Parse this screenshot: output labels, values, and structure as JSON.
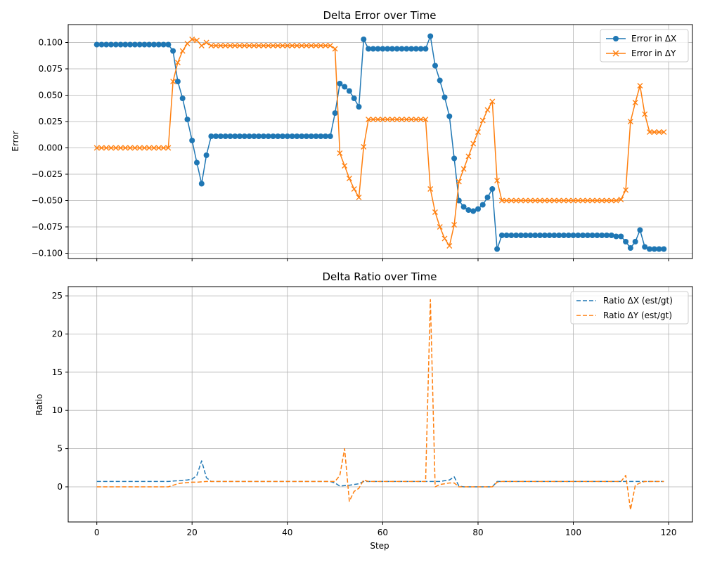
{
  "chart_data": [
    {
      "type": "line",
      "title": "Delta Error over Time",
      "xlabel": "",
      "ylabel": "Error",
      "xlim": [
        -6,
        125
      ],
      "ylim": [
        -0.105,
        0.117
      ],
      "xticks": [
        0,
        20,
        40,
        60,
        80,
        100,
        120
      ],
      "yticks": [
        -0.1,
        -0.075,
        -0.05,
        -0.025,
        0.0,
        0.025,
        0.05,
        0.075,
        0.1
      ],
      "ytick_labels": [
        "−0.100",
        "−0.075",
        "−0.050",
        "−0.025",
        "0.000",
        "0.025",
        "0.050",
        "0.075",
        "0.100"
      ],
      "show_xtick_labels": false,
      "grid": true,
      "legend_position": "top-right",
      "x": [
        0,
        1,
        2,
        3,
        4,
        5,
        6,
        7,
        8,
        9,
        10,
        11,
        12,
        13,
        14,
        15,
        16,
        17,
        18,
        19,
        20,
        21,
        22,
        23,
        24,
        25,
        26,
        27,
        28,
        29,
        30,
        31,
        32,
        33,
        34,
        35,
        36,
        37,
        38,
        39,
        40,
        41,
        42,
        43,
        44,
        45,
        46,
        47,
        48,
        49,
        50,
        51,
        52,
        53,
        54,
        55,
        56,
        57,
        58,
        59,
        60,
        61,
        62,
        63,
        64,
        65,
        66,
        67,
        68,
        69,
        70,
        71,
        72,
        73,
        74,
        75,
        76,
        77,
        78,
        79,
        80,
        81,
        82,
        83,
        84,
        85,
        86,
        87,
        88,
        89,
        90,
        91,
        92,
        93,
        94,
        95,
        96,
        97,
        98,
        99,
        100,
        101,
        102,
        103,
        104,
        105,
        106,
        107,
        108,
        109,
        110,
        111,
        112,
        113,
        114,
        115,
        116,
        117,
        118,
        119
      ],
      "series": [
        {
          "name": "Error in ΔX",
          "color": "#1f77b4",
          "marker": "circle",
          "linestyle": "solid",
          "values": [
            0.098,
            0.098,
            0.098,
            0.098,
            0.098,
            0.098,
            0.098,
            0.098,
            0.098,
            0.098,
            0.098,
            0.098,
            0.098,
            0.098,
            0.098,
            0.098,
            0.092,
            0.063,
            0.047,
            0.027,
            0.007,
            -0.014,
            -0.034,
            -0.007,
            0.011,
            0.011,
            0.011,
            0.011,
            0.011,
            0.011,
            0.011,
            0.011,
            0.011,
            0.011,
            0.011,
            0.011,
            0.011,
            0.011,
            0.011,
            0.011,
            0.011,
            0.011,
            0.011,
            0.011,
            0.011,
            0.011,
            0.011,
            0.011,
            0.011,
            0.011,
            0.033,
            0.061,
            0.058,
            0.054,
            0.047,
            0.039,
            0.103,
            0.094,
            0.094,
            0.094,
            0.094,
            0.094,
            0.094,
            0.094,
            0.094,
            0.094,
            0.094,
            0.094,
            0.094,
            0.094,
            0.106,
            0.078,
            0.064,
            0.048,
            0.03,
            -0.01,
            -0.05,
            -0.056,
            -0.059,
            -0.06,
            -0.058,
            -0.054,
            -0.047,
            -0.039,
            -0.096,
            -0.083,
            -0.083,
            -0.083,
            -0.083,
            -0.083,
            -0.083,
            -0.083,
            -0.083,
            -0.083,
            -0.083,
            -0.083,
            -0.083,
            -0.083,
            -0.083,
            -0.083,
            -0.083,
            -0.083,
            -0.083,
            -0.083,
            -0.083,
            -0.083,
            -0.083,
            -0.083,
            -0.083,
            -0.084,
            -0.084,
            -0.089,
            -0.095,
            -0.089,
            -0.078,
            -0.094,
            -0.096,
            -0.096,
            -0.096,
            -0.096
          ]
        },
        {
          "name": "Error in ΔY",
          "color": "#ff7f0e",
          "marker": "x",
          "linestyle": "solid",
          "values": [
            0.0,
            0.0,
            0.0,
            0.0,
            0.0,
            0.0,
            0.0,
            0.0,
            0.0,
            0.0,
            0.0,
            0.0,
            0.0,
            0.0,
            0.0,
            0.0,
            0.063,
            0.081,
            0.092,
            0.099,
            0.103,
            0.102,
            0.097,
            0.1,
            0.097,
            0.097,
            0.097,
            0.097,
            0.097,
            0.097,
            0.097,
            0.097,
            0.097,
            0.097,
            0.097,
            0.097,
            0.097,
            0.097,
            0.097,
            0.097,
            0.097,
            0.097,
            0.097,
            0.097,
            0.097,
            0.097,
            0.097,
            0.097,
            0.097,
            0.097,
            0.094,
            -0.005,
            -0.017,
            -0.029,
            -0.039,
            -0.047,
            0.001,
            0.027,
            0.027,
            0.027,
            0.027,
            0.027,
            0.027,
            0.027,
            0.027,
            0.027,
            0.027,
            0.027,
            0.027,
            0.027,
            -0.039,
            -0.061,
            -0.075,
            -0.086,
            -0.093,
            -0.073,
            -0.032,
            -0.02,
            -0.008,
            0.004,
            0.015,
            0.026,
            0.036,
            0.044,
            -0.031,
            -0.05,
            -0.05,
            -0.05,
            -0.05,
            -0.05,
            -0.05,
            -0.05,
            -0.05,
            -0.05,
            -0.05,
            -0.05,
            -0.05,
            -0.05,
            -0.05,
            -0.05,
            -0.05,
            -0.05,
            -0.05,
            -0.05,
            -0.05,
            -0.05,
            -0.05,
            -0.05,
            -0.05,
            -0.05,
            -0.049,
            -0.04,
            0.025,
            0.043,
            0.059,
            0.032,
            0.015,
            0.015,
            0.015,
            0.015
          ]
        }
      ]
    },
    {
      "type": "line",
      "title": "Delta Ratio over Time",
      "xlabel": "Step",
      "ylabel": "Ratio",
      "xlim": [
        -6,
        125
      ],
      "ylim": [
        -4.6,
        26.2
      ],
      "xticks": [
        0,
        20,
        40,
        60,
        80,
        100,
        120
      ],
      "xtick_labels": [
        "0",
        "20",
        "40",
        "60",
        "80",
        "100",
        "120"
      ],
      "yticks": [
        0,
        5,
        10,
        15,
        20,
        25
      ],
      "ytick_labels": [
        "0",
        "5",
        "10",
        "15",
        "20",
        "25"
      ],
      "grid": true,
      "legend_position": "top-right",
      "x": [
        0,
        1,
        2,
        3,
        4,
        5,
        6,
        7,
        8,
        9,
        10,
        11,
        12,
        13,
        14,
        15,
        16,
        17,
        18,
        19,
        20,
        21,
        22,
        23,
        24,
        25,
        26,
        27,
        28,
        29,
        30,
        31,
        32,
        33,
        34,
        35,
        36,
        37,
        38,
        39,
        40,
        41,
        42,
        43,
        44,
        45,
        46,
        47,
        48,
        49,
        50,
        51,
        52,
        53,
        54,
        55,
        56,
        57,
        58,
        59,
        60,
        61,
        62,
        63,
        64,
        65,
        66,
        67,
        68,
        69,
        70,
        71,
        72,
        73,
        74,
        75,
        76,
        77,
        78,
        79,
        80,
        81,
        82,
        83,
        84,
        85,
        86,
        87,
        88,
        89,
        90,
        91,
        92,
        93,
        94,
        95,
        96,
        97,
        98,
        99,
        100,
        101,
        102,
        103,
        104,
        105,
        106,
        107,
        108,
        109,
        110,
        111,
        112,
        113,
        114,
        115,
        116,
        117,
        118,
        119
      ],
      "series": [
        {
          "name": "Ratio ΔX (est/gt)",
          "color": "#1f77b4",
          "linestyle": "dashed",
          "values": [
            0.7,
            0.7,
            0.7,
            0.7,
            0.7,
            0.7,
            0.7,
            0.7,
            0.7,
            0.7,
            0.7,
            0.7,
            0.7,
            0.7,
            0.7,
            0.7,
            0.75,
            0.8,
            0.85,
            0.9,
            1.0,
            1.5,
            3.4,
            1.2,
            0.7,
            0.7,
            0.7,
            0.7,
            0.7,
            0.7,
            0.7,
            0.7,
            0.7,
            0.7,
            0.7,
            0.7,
            0.7,
            0.7,
            0.7,
            0.7,
            0.7,
            0.7,
            0.7,
            0.7,
            0.7,
            0.7,
            0.7,
            0.7,
            0.7,
            0.7,
            0.5,
            0.1,
            0.15,
            0.2,
            0.3,
            0.4,
            0.7,
            0.7,
            0.7,
            0.7,
            0.7,
            0.7,
            0.7,
            0.7,
            0.7,
            0.7,
            0.7,
            0.7,
            0.7,
            0.7,
            0.7,
            0.7,
            0.7,
            0.8,
            0.9,
            1.3,
            0.1,
            0.0,
            0.0,
            0.0,
            0.0,
            0.0,
            0.0,
            0.0,
            0.7,
            0.7,
            0.7,
            0.7,
            0.7,
            0.7,
            0.7,
            0.7,
            0.7,
            0.7,
            0.7,
            0.7,
            0.7,
            0.7,
            0.7,
            0.7,
            0.7,
            0.7,
            0.7,
            0.7,
            0.7,
            0.7,
            0.7,
            0.7,
            0.7,
            0.7,
            0.7,
            0.7,
            0.7,
            0.7,
            0.7,
            0.7,
            0.7,
            0.7,
            0.7,
            0.7
          ]
        },
        {
          "name": "Ratio ΔY (est/gt)",
          "color": "#ff7f0e",
          "linestyle": "dashed",
          "values": [
            0.0,
            0.0,
            0.0,
            0.0,
            0.0,
            0.0,
            0.0,
            0.0,
            0.0,
            0.0,
            0.0,
            0.0,
            0.0,
            0.0,
            0.0,
            0.0,
            0.2,
            0.4,
            0.5,
            0.55,
            0.6,
            0.6,
            0.65,
            0.7,
            0.7,
            0.7,
            0.7,
            0.7,
            0.7,
            0.7,
            0.7,
            0.7,
            0.7,
            0.7,
            0.7,
            0.7,
            0.7,
            0.7,
            0.7,
            0.7,
            0.7,
            0.7,
            0.7,
            0.7,
            0.7,
            0.7,
            0.7,
            0.7,
            0.7,
            0.7,
            0.7,
            1.5,
            5.0,
            -1.9,
            -0.6,
            -0.2,
            0.9,
            0.7,
            0.7,
            0.7,
            0.7,
            0.7,
            0.7,
            0.7,
            0.7,
            0.7,
            0.7,
            0.7,
            0.7,
            0.7,
            24.5,
            0.0,
            0.3,
            0.4,
            0.5,
            0.5,
            0.0,
            0.0,
            0.0,
            0.0,
            0.0,
            0.0,
            0.0,
            0.0,
            0.6,
            0.7,
            0.7,
            0.7,
            0.7,
            0.7,
            0.7,
            0.7,
            0.7,
            0.7,
            0.7,
            0.7,
            0.7,
            0.7,
            0.7,
            0.7,
            0.7,
            0.7,
            0.7,
            0.7,
            0.7,
            0.7,
            0.7,
            0.7,
            0.7,
            0.7,
            0.7,
            1.5,
            -3.0,
            0.2,
            0.5,
            0.7,
            0.7,
            0.7,
            0.7,
            0.7
          ]
        }
      ]
    }
  ]
}
